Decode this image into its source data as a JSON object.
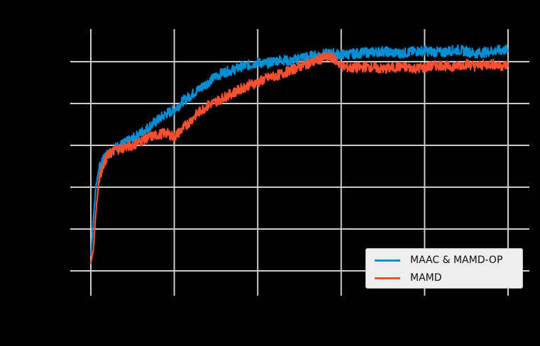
{
  "chart_data": {
    "type": "line",
    "title": "",
    "xlabel": "",
    "ylabel": "",
    "x_ticks_visible_labels": [],
    "y_ticks_visible_labels": [],
    "x_units": "gridline index (tick labels not visible)",
    "y_units": "gridline index (tick labels not visible)",
    "xlim": [
      -0.25,
      5.25
    ],
    "ylim": [
      -0.6,
      5.8
    ],
    "grid": true,
    "legend_position": "lower right",
    "x": [
      0.0,
      0.03,
      0.06,
      0.1,
      0.15,
      0.2,
      0.3,
      0.4,
      0.5,
      0.6,
      0.7,
      0.8,
      0.9,
      1.0,
      1.1,
      1.2,
      1.3,
      1.4,
      1.5,
      1.6,
      1.7,
      1.8,
      1.9,
      2.0,
      2.1,
      2.2,
      2.3,
      2.4,
      2.5,
      2.6,
      2.7,
      2.8,
      2.9,
      3.0,
      3.1,
      3.2,
      3.3,
      3.4,
      3.5,
      3.6,
      3.7,
      3.8,
      3.9,
      4.0,
      4.1,
      4.2,
      4.3,
      4.4,
      4.5,
      4.6,
      4.7,
      4.8,
      4.9,
      5.0
    ],
    "series": [
      {
        "name": "MAAC & MAMD-OP",
        "color": "#008fd5",
        "values": [
          0.35,
          1.2,
          2.0,
          2.45,
          2.65,
          2.8,
          2.95,
          3.05,
          3.15,
          3.3,
          3.45,
          3.6,
          3.75,
          3.85,
          4.05,
          4.2,
          4.35,
          4.5,
          4.65,
          4.75,
          4.8,
          4.88,
          4.92,
          4.98,
          4.95,
          5.02,
          5.05,
          5.0,
          5.1,
          5.12,
          5.15,
          5.18,
          5.2,
          5.17,
          5.18,
          5.2,
          5.22,
          5.23,
          5.25,
          5.22,
          5.2,
          5.22,
          5.25,
          5.26,
          5.24,
          5.22,
          5.26,
          5.28,
          5.25,
          5.2,
          5.22,
          5.25,
          5.27,
          5.28
        ]
      },
      {
        "name": "MAMD",
        "color": "#fc4f30",
        "values": [
          0.2,
          0.5,
          1.4,
          2.2,
          2.55,
          2.75,
          2.9,
          2.95,
          3.0,
          3.1,
          3.2,
          3.25,
          3.3,
          3.2,
          3.4,
          3.6,
          3.8,
          3.95,
          4.05,
          4.15,
          4.25,
          4.35,
          4.45,
          4.5,
          4.6,
          4.65,
          4.72,
          4.8,
          4.88,
          4.95,
          5.02,
          5.1,
          5.1,
          4.9,
          4.85,
          4.85,
          4.88,
          4.86,
          4.82,
          4.85,
          4.88,
          4.86,
          4.84,
          4.86,
          4.9,
          4.92,
          4.88,
          4.9,
          4.95,
          4.9,
          4.92,
          4.95,
          4.9,
          4.92
        ]
      }
    ]
  },
  "legend": {
    "items": [
      {
        "label": "MAAC & MAMD-OP",
        "color": "#008fd5"
      },
      {
        "label": "MAMD",
        "color": "#fc4f30"
      }
    ]
  },
  "style": {
    "background": "#000000",
    "grid_color": "#cbcbcb",
    "legend_background": "#eeeeee"
  }
}
